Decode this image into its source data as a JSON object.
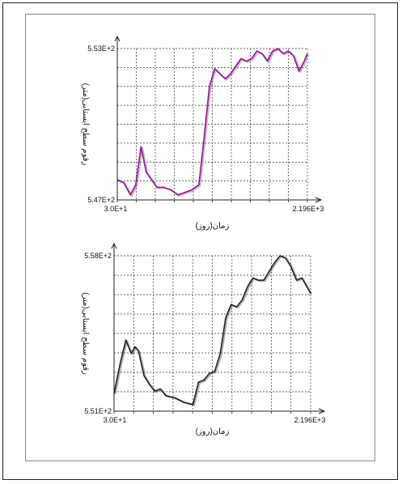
{
  "chart_data": [
    {
      "type": "line",
      "xlabel": "زمان(روز)",
      "ylabel": "رقوم سطح ایستابی(متر)",
      "x_tick_labels": [
        "3.0E+1",
        "2.196E+3"
      ],
      "y_tick_labels": [
        "5.47E+2",
        "5.53E+2"
      ],
      "xlim": [
        30,
        2196
      ],
      "ylim": [
        547,
        553
      ],
      "grid": true,
      "series": [
        {
          "color": "#8b1a8b",
          "x": [
            30,
            100,
            180,
            240,
            300,
            360,
            420,
            480,
            560,
            640,
            720,
            800,
            880,
            960,
            1020,
            1080,
            1140,
            1200,
            1260,
            1320,
            1380,
            1440,
            1500,
            1560,
            1620,
            1680,
            1740,
            1800,
            1860,
            1920,
            1980,
            2040,
            2100,
            2160,
            2196
          ],
          "y": [
            547.8,
            547.7,
            547.2,
            547.6,
            549.1,
            548.1,
            547.8,
            547.5,
            547.5,
            547.4,
            547.2,
            547.3,
            547.4,
            547.6,
            549.5,
            551.5,
            552.2,
            552.0,
            551.8,
            552.0,
            552.3,
            552.6,
            552.5,
            552.6,
            552.9,
            552.8,
            552.5,
            552.9,
            553.0,
            552.8,
            552.9,
            552.7,
            552.1,
            552.5,
            552.8
          ]
        }
      ]
    },
    {
      "type": "line",
      "xlabel": "زمان(روز)",
      "ylabel": "رقوم سطح ایستابی(متر)",
      "x_tick_labels": [
        "3.0E+1",
        "2.196E+3"
      ],
      "y_tick_labels": [
        "5.51E+2",
        "5.58E+2"
      ],
      "xlim": [
        30,
        2196
      ],
      "ylim": [
        551,
        558
      ],
      "grid": true,
      "series": [
        {
          "color": "#222222",
          "x": [
            30,
            100,
            160,
            220,
            260,
            300,
            360,
            420,
            480,
            540,
            600,
            700,
            800,
            900,
            960,
            1020,
            1080,
            1140,
            1200,
            1260,
            1320,
            1380,
            1440,
            1500,
            1560,
            1620,
            1680,
            1740,
            1800,
            1860,
            1920,
            1980,
            2040,
            2100,
            2196
          ],
          "y": [
            551.8,
            553.2,
            554.2,
            553.6,
            553.9,
            553.7,
            552.6,
            552.2,
            551.9,
            552.0,
            551.7,
            551.6,
            551.4,
            551.3,
            552.3,
            552.4,
            552.7,
            552.8,
            553.6,
            555.2,
            555.8,
            555.7,
            556.0,
            556.6,
            557.0,
            556.9,
            556.9,
            557.3,
            557.7,
            558.0,
            557.9,
            557.5,
            556.9,
            557.0,
            556.3
          ]
        }
      ]
    }
  ]
}
